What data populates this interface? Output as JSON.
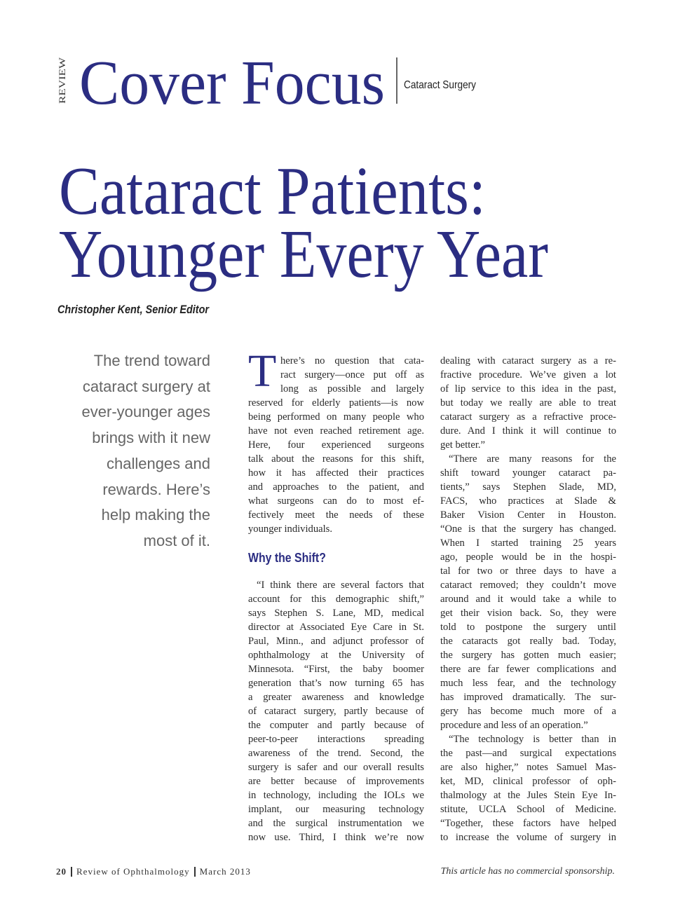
{
  "header": {
    "section_label": "REVIEW",
    "title": "Cover Focus",
    "topic": "Cataract Surgery"
  },
  "article": {
    "title_lines": [
      "Cataract Patients:",
      "Younger Every Year"
    ],
    "byline": "Christopher Kent, Senior Editor",
    "pull_quote_lines": [
      "The trend toward",
      "cataract surgery at",
      "ever-younger ages",
      "brings with it new",
      "challenges and",
      "rewards. Here’s",
      "help making the",
      "most of it."
    ],
    "dropcap": "T",
    "columns": [
      {
        "blocks": [
          {
            "lines": [
              "here’s no question that cata-",
              "ract surgery—once put off as",
              "long as possible and largely",
              "reserved for elderly patients—is now",
              "being performed on many people who",
              "have not even reached retirement age.",
              "Here, four experienced surgeons",
              "talk about the reasons for this shift,",
              "how it has affected their practices",
              "and approaches to the patient, and",
              "what surgeons can do to most ef-",
              "fectively meet the needs of these",
              "younger individuals."
            ]
          },
          {
            "heading": "Why the Shift?"
          },
          {
            "lines": [
              "“I think there are several factors that",
              "account for this demographic shift,”",
              "says Stephen S. Lane, MD, medical",
              "director at Associated Eye Care in St.",
              "Paul, Minn., and adjunct professor of",
              "ophthalmology at the University of",
              "Minnesota. “First, the baby boomer",
              "generation that’s now turning 65 has",
              "a greater awareness and knowledge",
              "of cataract surgery, partly because of",
              "the computer and partly because of",
              "peer-to-peer interactions spreading",
              "awareness of the trend. Second, the",
              "surgery is safer and our overall results",
              "are better because of improvements",
              "in technology, including the IOLs we",
              "implant, our measuring technology",
              "and the surgical instrumentation we",
              "now use. Third, I think we’re now"
            ]
          }
        ]
      },
      {
        "blocks": [
          {
            "lines": [
              "dealing with cataract surgery as a re-",
              "fractive procedure. We’ve given a lot",
              "of lip service to this idea in the past,",
              "but today we really are able to treat",
              "cataract surgery as a refractive proce-",
              "dure. And I think it will continue to",
              "get better.”"
            ]
          },
          {
            "lines": [
              "“There are many reasons for the",
              "shift toward younger cataract pa-",
              "tients,” says Stephen Slade, MD,",
              "FACS, who practices at Slade &",
              "Baker Vision Center in Houston.",
              "“One is that the surgery has changed.",
              "When I started training 25 years",
              "ago, people would be in the hospi-",
              "tal for two or three days to have a",
              "cataract removed; they couldn’t move",
              "around and it would take a while to",
              "get their vision back. So, they were",
              "told to postpone the surgery until",
              "the cataracts got really bad. Today,",
              "the surgery has gotten much easier;",
              "there are far fewer complications and",
              "much less fear, and the technology",
              "has improved dramatically. The sur-",
              "gery has become much more of a",
              "procedure and less of an operation.”"
            ]
          },
          {
            "lines": [
              "“The technology is better than in",
              "the past—and surgical expectations",
              "are also higher,” notes Samuel Mas-",
              "ket, MD, clinical professor of oph-",
              "thalmology at the Jules Stein Eye In-",
              "stitute, UCLA School of Medicine.",
              "“Together, these factors have helped",
              "to increase the volume of surgery in"
            ]
          }
        ]
      }
    ]
  },
  "footer": {
    "page": "20",
    "publication": "Review of Ophthalmology",
    "date": "March 2013",
    "note": "This article has no commercial sponsorship."
  }
}
